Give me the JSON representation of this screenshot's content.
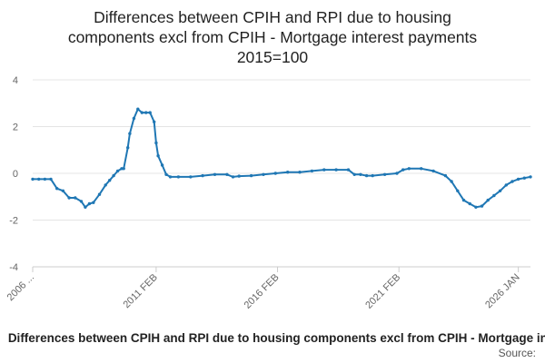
{
  "chart_data": {
    "type": "line",
    "title_lines": [
      "Differences between CPIH and RPI due to housing",
      "components excl from CPIH - Mortgage interest payments",
      "2015=100"
    ],
    "series": [
      {
        "name": "Differences between CPIH and RPI due to housing components excl from CPIH - Mortgage interest payments",
        "color": "#1f77b4",
        "points": [
          [
            "2006-01",
            -0.25
          ],
          [
            "2006-04",
            -0.25
          ],
          [
            "2006-07",
            -0.25
          ],
          [
            "2006-10",
            -0.25
          ],
          [
            "2007-01",
            -0.65
          ],
          [
            "2007-04",
            -0.75
          ],
          [
            "2007-07",
            -1.05
          ],
          [
            "2007-10",
            -1.05
          ],
          [
            "2008-01",
            -1.2
          ],
          [
            "2008-03",
            -1.45
          ],
          [
            "2008-05",
            -1.3
          ],
          [
            "2008-07",
            -1.25
          ],
          [
            "2008-10",
            -0.9
          ],
          [
            "2009-01",
            -0.5
          ],
          [
            "2009-03",
            -0.3
          ],
          [
            "2009-05",
            -0.1
          ],
          [
            "2009-07",
            0.1
          ],
          [
            "2009-09",
            0.2
          ],
          [
            "2009-10",
            0.2
          ],
          [
            "2009-12",
            1.1
          ],
          [
            "2010-01",
            1.7
          ],
          [
            "2010-03",
            2.35
          ],
          [
            "2010-05",
            2.75
          ],
          [
            "2010-07",
            2.6
          ],
          [
            "2010-09",
            2.6
          ],
          [
            "2010-11",
            2.6
          ],
          [
            "2011-01",
            2.2
          ],
          [
            "2011-02",
            1.3
          ],
          [
            "2011-03",
            0.75
          ],
          [
            "2011-05",
            0.35
          ],
          [
            "2011-07",
            -0.05
          ],
          [
            "2011-09",
            -0.15
          ],
          [
            "2012-01",
            -0.15
          ],
          [
            "2012-07",
            -0.15
          ],
          [
            "2013-01",
            -0.1
          ],
          [
            "2013-07",
            -0.05
          ],
          [
            "2014-01",
            -0.05
          ],
          [
            "2014-04",
            -0.15
          ],
          [
            "2014-07",
            -0.12
          ],
          [
            "2015-01",
            -0.1
          ],
          [
            "2015-07",
            -0.05
          ],
          [
            "2016-01",
            0.0
          ],
          [
            "2016-07",
            0.05
          ],
          [
            "2017-01",
            0.05
          ],
          [
            "2017-07",
            0.1
          ],
          [
            "2018-01",
            0.15
          ],
          [
            "2018-07",
            0.15
          ],
          [
            "2019-01",
            0.15
          ],
          [
            "2019-04",
            -0.05
          ],
          [
            "2019-07",
            -0.05
          ],
          [
            "2019-10",
            -0.1
          ],
          [
            "2020-01",
            -0.1
          ],
          [
            "2020-07",
            -0.05
          ],
          [
            "2021-01",
            0.0
          ],
          [
            "2021-04",
            0.15
          ],
          [
            "2021-07",
            0.2
          ],
          [
            "2022-01",
            0.2
          ],
          [
            "2022-07",
            0.1
          ],
          [
            "2023-01",
            -0.1
          ],
          [
            "2023-04",
            -0.35
          ],
          [
            "2023-07",
            -0.75
          ],
          [
            "2023-10",
            -1.15
          ],
          [
            "2024-01",
            -1.3
          ],
          [
            "2024-04",
            -1.45
          ],
          [
            "2024-07",
            -1.4
          ],
          [
            "2024-10",
            -1.15
          ],
          [
            "2025-01",
            -0.95
          ],
          [
            "2025-04",
            -0.75
          ],
          [
            "2025-07",
            -0.5
          ],
          [
            "2025-10",
            -0.35
          ],
          [
            "2026-01",
            -0.25
          ],
          [
            "2026-04",
            -0.2
          ],
          [
            "2026-07",
            -0.15
          ]
        ]
      }
    ],
    "x_ticks": [
      {
        "date": "2006-01",
        "label": "2006 ..."
      },
      {
        "date": "2011-02",
        "label": "2011 FEB"
      },
      {
        "date": "2016-02",
        "label": "2016 FEB"
      },
      {
        "date": "2021-02",
        "label": "2021 FEB"
      },
      {
        "date": "2026-01",
        "label": "2026 JAN"
      }
    ],
    "x_range": [
      "2006-01",
      "2026-07"
    ],
    "ylim": [
      -4,
      4
    ],
    "y_ticks": [
      -4,
      -2,
      0,
      2,
      4
    ],
    "grid": "horizontal",
    "legend_position": "bottom",
    "source_label": "Source:"
  }
}
